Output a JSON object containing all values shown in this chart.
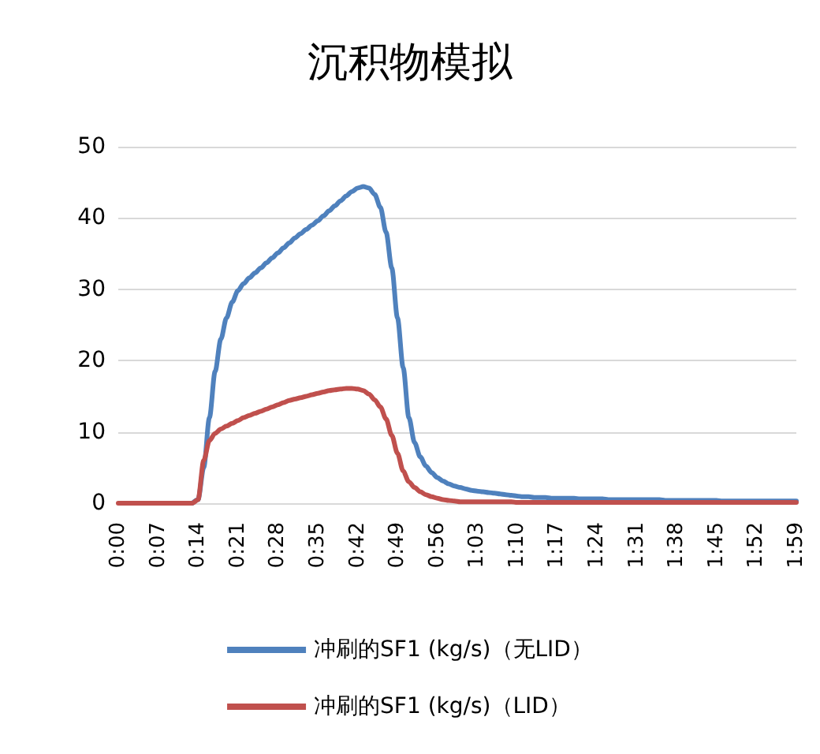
{
  "chart_data": {
    "type": "line",
    "title": "沉积物模拟",
    "categories": [
      "0:00",
      null,
      null,
      null,
      null,
      null,
      null,
      "0:07",
      null,
      null,
      null,
      null,
      null,
      null,
      "0:14",
      null,
      null,
      null,
      null,
      null,
      null,
      "0:21",
      null,
      null,
      null,
      null,
      null,
      null,
      "0:28",
      null,
      null,
      null,
      null,
      null,
      null,
      "0:35",
      null,
      null,
      null,
      null,
      null,
      null,
      "0:42",
      null,
      null,
      null,
      null,
      null,
      null,
      "0:49",
      null,
      null,
      null,
      null,
      null,
      null,
      "0:56",
      null,
      null,
      null,
      null,
      null,
      null,
      "1:03",
      null,
      null,
      null,
      null,
      null,
      null,
      "1:10",
      null,
      null,
      null,
      null,
      null,
      null,
      "1:17",
      null,
      null,
      null,
      null,
      null,
      null,
      "1:24",
      null,
      null,
      null,
      null,
      null,
      null,
      "1:31",
      null,
      null,
      null,
      null,
      null,
      null,
      "1:38",
      null,
      null,
      null,
      null,
      null,
      null,
      "1:45",
      null,
      null,
      null,
      null,
      null,
      null,
      "1:52",
      null,
      null,
      null,
      null,
      null,
      null,
      "1:59"
    ],
    "series": [
      {
        "name": "冲刷的SF1 (kg/s)（无LID）",
        "color": "#4f81bd",
        "values": [
          null,
          null,
          null,
          null,
          null,
          null,
          null,
          null,
          null,
          null,
          null,
          null,
          null,
          0,
          0.5,
          5,
          12,
          18.5,
          23,
          26,
          28.2,
          29.8,
          30.8,
          31.6,
          32.3,
          33,
          33.7,
          34.4,
          35.1,
          35.8,
          36.5,
          37.2,
          37.8,
          38.4,
          39,
          39.6,
          40.3,
          41,
          41.7,
          42.4,
          43.1,
          43.7,
          44.2,
          44.4,
          44.2,
          43.3,
          41.5,
          38,
          33,
          26,
          19,
          12,
          8.5,
          6.5,
          5.2,
          4.3,
          3.6,
          3.1,
          2.7,
          2.4,
          2.2,
          2,
          1.8,
          1.7,
          1.6,
          1.5,
          1.4,
          1.3,
          1.2,
          1.1,
          1,
          0.9,
          0.9,
          0.8,
          0.8,
          0.8,
          0.7,
          0.7,
          0.7,
          0.7,
          0.7,
          0.6,
          0.6,
          0.6,
          0.6,
          0.6,
          0.5,
          0.5,
          0.5,
          0.5,
          0.5,
          0.5,
          0.5,
          0.5,
          0.5,
          0.5,
          0.4,
          0.4,
          0.4,
          0.4,
          0.4,
          0.4,
          0.4,
          0.4,
          0.4,
          0.4,
          0.3,
          0.3,
          0.3,
          0.3,
          0.3,
          0.3,
          0.3,
          0.3,
          0.3,
          0.3,
          0.3,
          0.3,
          0.3,
          0.3
        ]
      },
      {
        "name": "冲刷的SF1 (kg/s)（LID）",
        "color": "#c0504d",
        "values": [
          0,
          0,
          0,
          0,
          0,
          0,
          0,
          0,
          0,
          0,
          0,
          0,
          0,
          0,
          0.5,
          6,
          8.8,
          9.8,
          10.4,
          10.8,
          11.2,
          11.6,
          12,
          12.3,
          12.6,
          12.9,
          13.2,
          13.5,
          13.8,
          14.1,
          14.4,
          14.6,
          14.8,
          15,
          15.2,
          15.4,
          15.6,
          15.8,
          15.9,
          16,
          16.1,
          16.1,
          16,
          15.8,
          15.3,
          14.5,
          13.5,
          11.8,
          9.5,
          7,
          4.5,
          3,
          2.2,
          1.6,
          1.2,
          0.9,
          0.7,
          0.5,
          0.4,
          0.3,
          0.2,
          0.2,
          0.2,
          0.2,
          0.2,
          0.2,
          0.2,
          0.2,
          0.2,
          0.2,
          0.1,
          0.1,
          0.1,
          0.1,
          0.1,
          0.1,
          0.1,
          0.1,
          0.1,
          0.1,
          0.1,
          0.1,
          0.1,
          0.1,
          0.1,
          0.1,
          0.1,
          0.1,
          0.1,
          0.1,
          0.1,
          0.1,
          0.1,
          0.1,
          0.1,
          0.1,
          0.1,
          0.1,
          0.1,
          0.1,
          0.1,
          0.1,
          0.1,
          0.1,
          0.1,
          0.1,
          0.1,
          0.1,
          0.1,
          0.1,
          0.1,
          0.1,
          0.1,
          0.1,
          0.1,
          0.1,
          0.1,
          0.1,
          0.1,
          0.1
        ]
      }
    ],
    "ylim": [
      0,
      50
    ],
    "yticks": [
      0,
      10,
      20,
      30,
      40,
      50
    ],
    "grid": "y",
    "legend": "bottom",
    "marker": "none",
    "line_style": "solid"
  }
}
